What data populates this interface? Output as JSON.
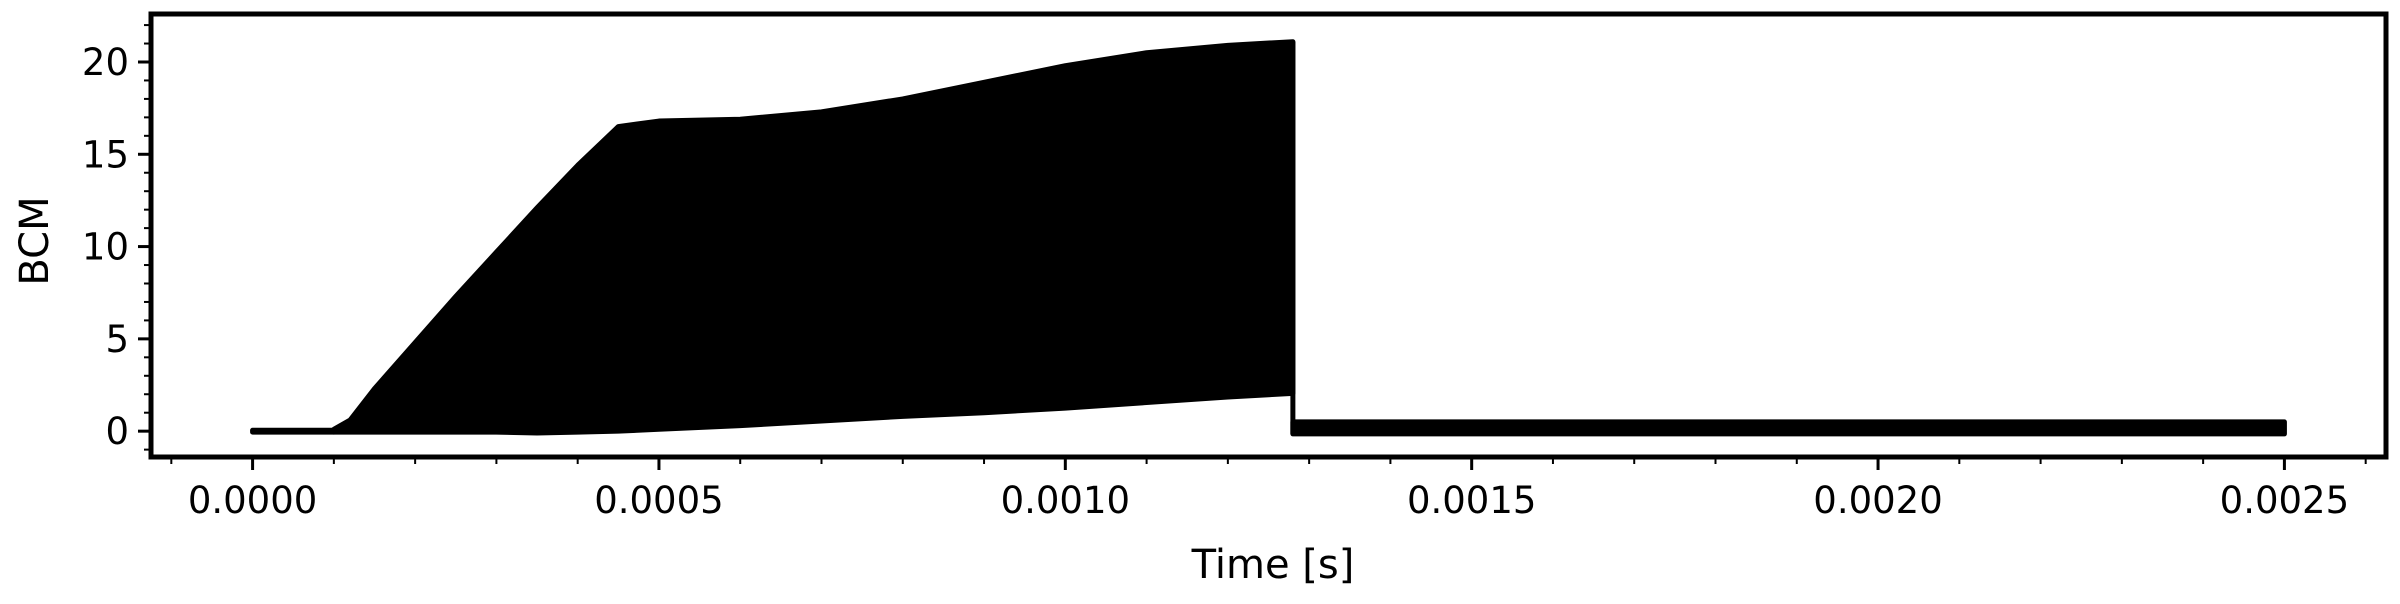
{
  "chart_data": {
    "type": "line",
    "title": "",
    "xlabel": "Time [s]",
    "ylabel": "BCM",
    "xlim": [
      -0.000125,
      0.002625
    ],
    "ylim": [
      -1.4,
      22.6
    ],
    "x_major_ticks": [
      0.0,
      0.0005,
      0.001,
      0.0015,
      0.002,
      0.0025
    ],
    "x_tick_labels": [
      "0.0000",
      "0.0005",
      "0.0010",
      "0.0015",
      "0.0020",
      "0.0025"
    ],
    "x_minor_step": 0.0001,
    "y_major_ticks": [
      0,
      5,
      10,
      15,
      20
    ],
    "y_tick_labels": [
      "0",
      "5",
      "10",
      "15",
      "20"
    ],
    "y_minor_step": 1,
    "grid": false,
    "line_color": "#000000",
    "series": [
      {
        "name": "BCM",
        "segments": [
          {
            "description_of_segment": "baseline before growth",
            "x": [
              0.0,
              0.0001
            ],
            "upper": [
              0.05,
              0.05
            ],
            "lower": [
              -0.05,
              -0.05
            ]
          },
          {
            "description_of_segment": "oscillating envelope",
            "x": [
              0.0001,
              0.00012,
              0.00015,
              0.0002,
              0.00025,
              0.0003,
              0.00035,
              0.0004,
              0.00045,
              0.0005,
              0.0006,
              0.0007,
              0.0008,
              0.0009,
              0.001,
              0.0011,
              0.0012,
              0.00128
            ],
            "upper": [
              0.1,
              0.6,
              2.3,
              4.8,
              7.3,
              9.7,
              12.1,
              14.4,
              16.5,
              16.8,
              16.9,
              17.3,
              18.0,
              18.9,
              19.8,
              20.5,
              20.9,
              21.1
            ],
            "lower": [
              -0.05,
              -0.05,
              -0.05,
              -0.05,
              -0.05,
              -0.05,
              -0.1,
              -0.05,
              0.0,
              0.1,
              0.3,
              0.55,
              0.8,
              1.0,
              1.25,
              1.55,
              1.85,
              2.05
            ]
          },
          {
            "description_of_segment": "post-drop noise band",
            "x": [
              0.00128,
              0.0025
            ],
            "upper": [
              0.5,
              0.5
            ],
            "lower": [
              -0.15,
              -0.15
            ]
          }
        ]
      }
    ]
  }
}
